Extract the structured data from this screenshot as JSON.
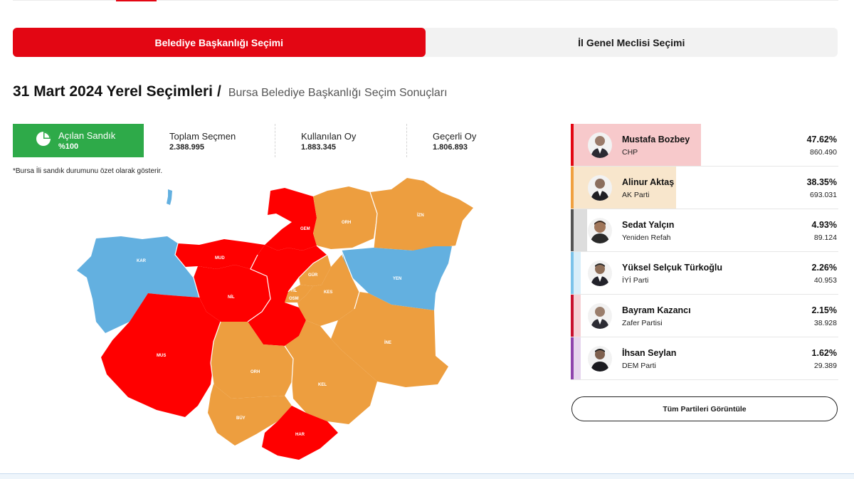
{
  "tabs": [
    {
      "label": "Belediye Başkanlığı Seçimi",
      "active": true
    },
    {
      "label": "İl Genel Meclisi Seçimi",
      "active": false
    }
  ],
  "heading": {
    "main": "31 Mart 2024 Yerel Seçimleri",
    "separator": "/",
    "sub": "Bursa Belediye Başkanlığı Seçim Sonuçları"
  },
  "stats": {
    "opened": {
      "label": "Açılan Sandık",
      "value": "%100",
      "icon": "pie-chart-icon"
    },
    "total": {
      "label": "Toplam Seçmen",
      "value": "2.388.995"
    },
    "used": {
      "label": "Kullanılan Oy",
      "value": "1.883.345"
    },
    "valid": {
      "label": "Geçerli Oy",
      "value": "1.806.893"
    }
  },
  "note": "*Bursa İli sandık durumunu özet olarak gösterir.",
  "colors": {
    "accent": "#e30613",
    "green": "#2eaa49",
    "chp": "#ff0000",
    "akp": "#ed9e3f",
    "iyi": "#63b0e0"
  },
  "map": {
    "districts": [
      {
        "code": "KAR",
        "party": "iyi"
      },
      {
        "code": "MUD",
        "party": "chp"
      },
      {
        "code": "GEM",
        "party": "chp"
      },
      {
        "code": "ORH",
        "party": "akp"
      },
      {
        "code": "İZN",
        "party": "akp"
      },
      {
        "code": "YEN",
        "party": "iyi"
      },
      {
        "code": "NİL",
        "party": "chp"
      },
      {
        "code": "GÜR",
        "party": "akp"
      },
      {
        "code": "YIL",
        "party": "akp"
      },
      {
        "code": "OSM",
        "party": "chp"
      },
      {
        "code": "KES",
        "party": "akp"
      },
      {
        "code": "İNE",
        "party": "akp"
      },
      {
        "code": "MUS",
        "party": "chp"
      },
      {
        "code": "ORH",
        "party": "akp"
      },
      {
        "code": "KEL",
        "party": "akp"
      },
      {
        "code": "BÜY",
        "party": "akp"
      },
      {
        "code": "HAR",
        "party": "chp"
      }
    ]
  },
  "candidates": [
    {
      "name": "Mustafa Bozbey",
      "party": "CHP",
      "percent": "47.62%",
      "votes": "860.490",
      "share": 47.62,
      "color": "#e30613",
      "bg": "#f7c9cb"
    },
    {
      "name": "Alinur Aktaş",
      "party": "AK Parti",
      "percent": "38.35%",
      "votes": "693.031",
      "share": 38.35,
      "color": "#f0a040",
      "bg": "#f8e6cc"
    },
    {
      "name": "Sedat Yalçın",
      "party": "Yeniden Refah",
      "percent": "4.93%",
      "votes": "89.124",
      "share": 4.93,
      "color": "#555555",
      "bg": "#dddddd"
    },
    {
      "name": "Yüksel Selçuk Türkoğlu",
      "party": "İYİ Parti",
      "percent": "2.26%",
      "votes": "40.953",
      "share": 2.26,
      "color": "#7cc3ea",
      "bg": "#d9eef9"
    },
    {
      "name": "Bayram Kazancı",
      "party": "Zafer Partisi",
      "percent": "2.15%",
      "votes": "38.928",
      "share": 2.15,
      "color": "#c8102e",
      "bg": "#f5d0d4"
    },
    {
      "name": "İhsan Seylan",
      "party": "DEM Parti",
      "percent": "1.62%",
      "votes": "29.389",
      "share": 1.62,
      "color": "#8e44ad",
      "bg": "#e6d5ee"
    }
  ],
  "all_parties_label": "Tüm Partileri Görüntüle"
}
